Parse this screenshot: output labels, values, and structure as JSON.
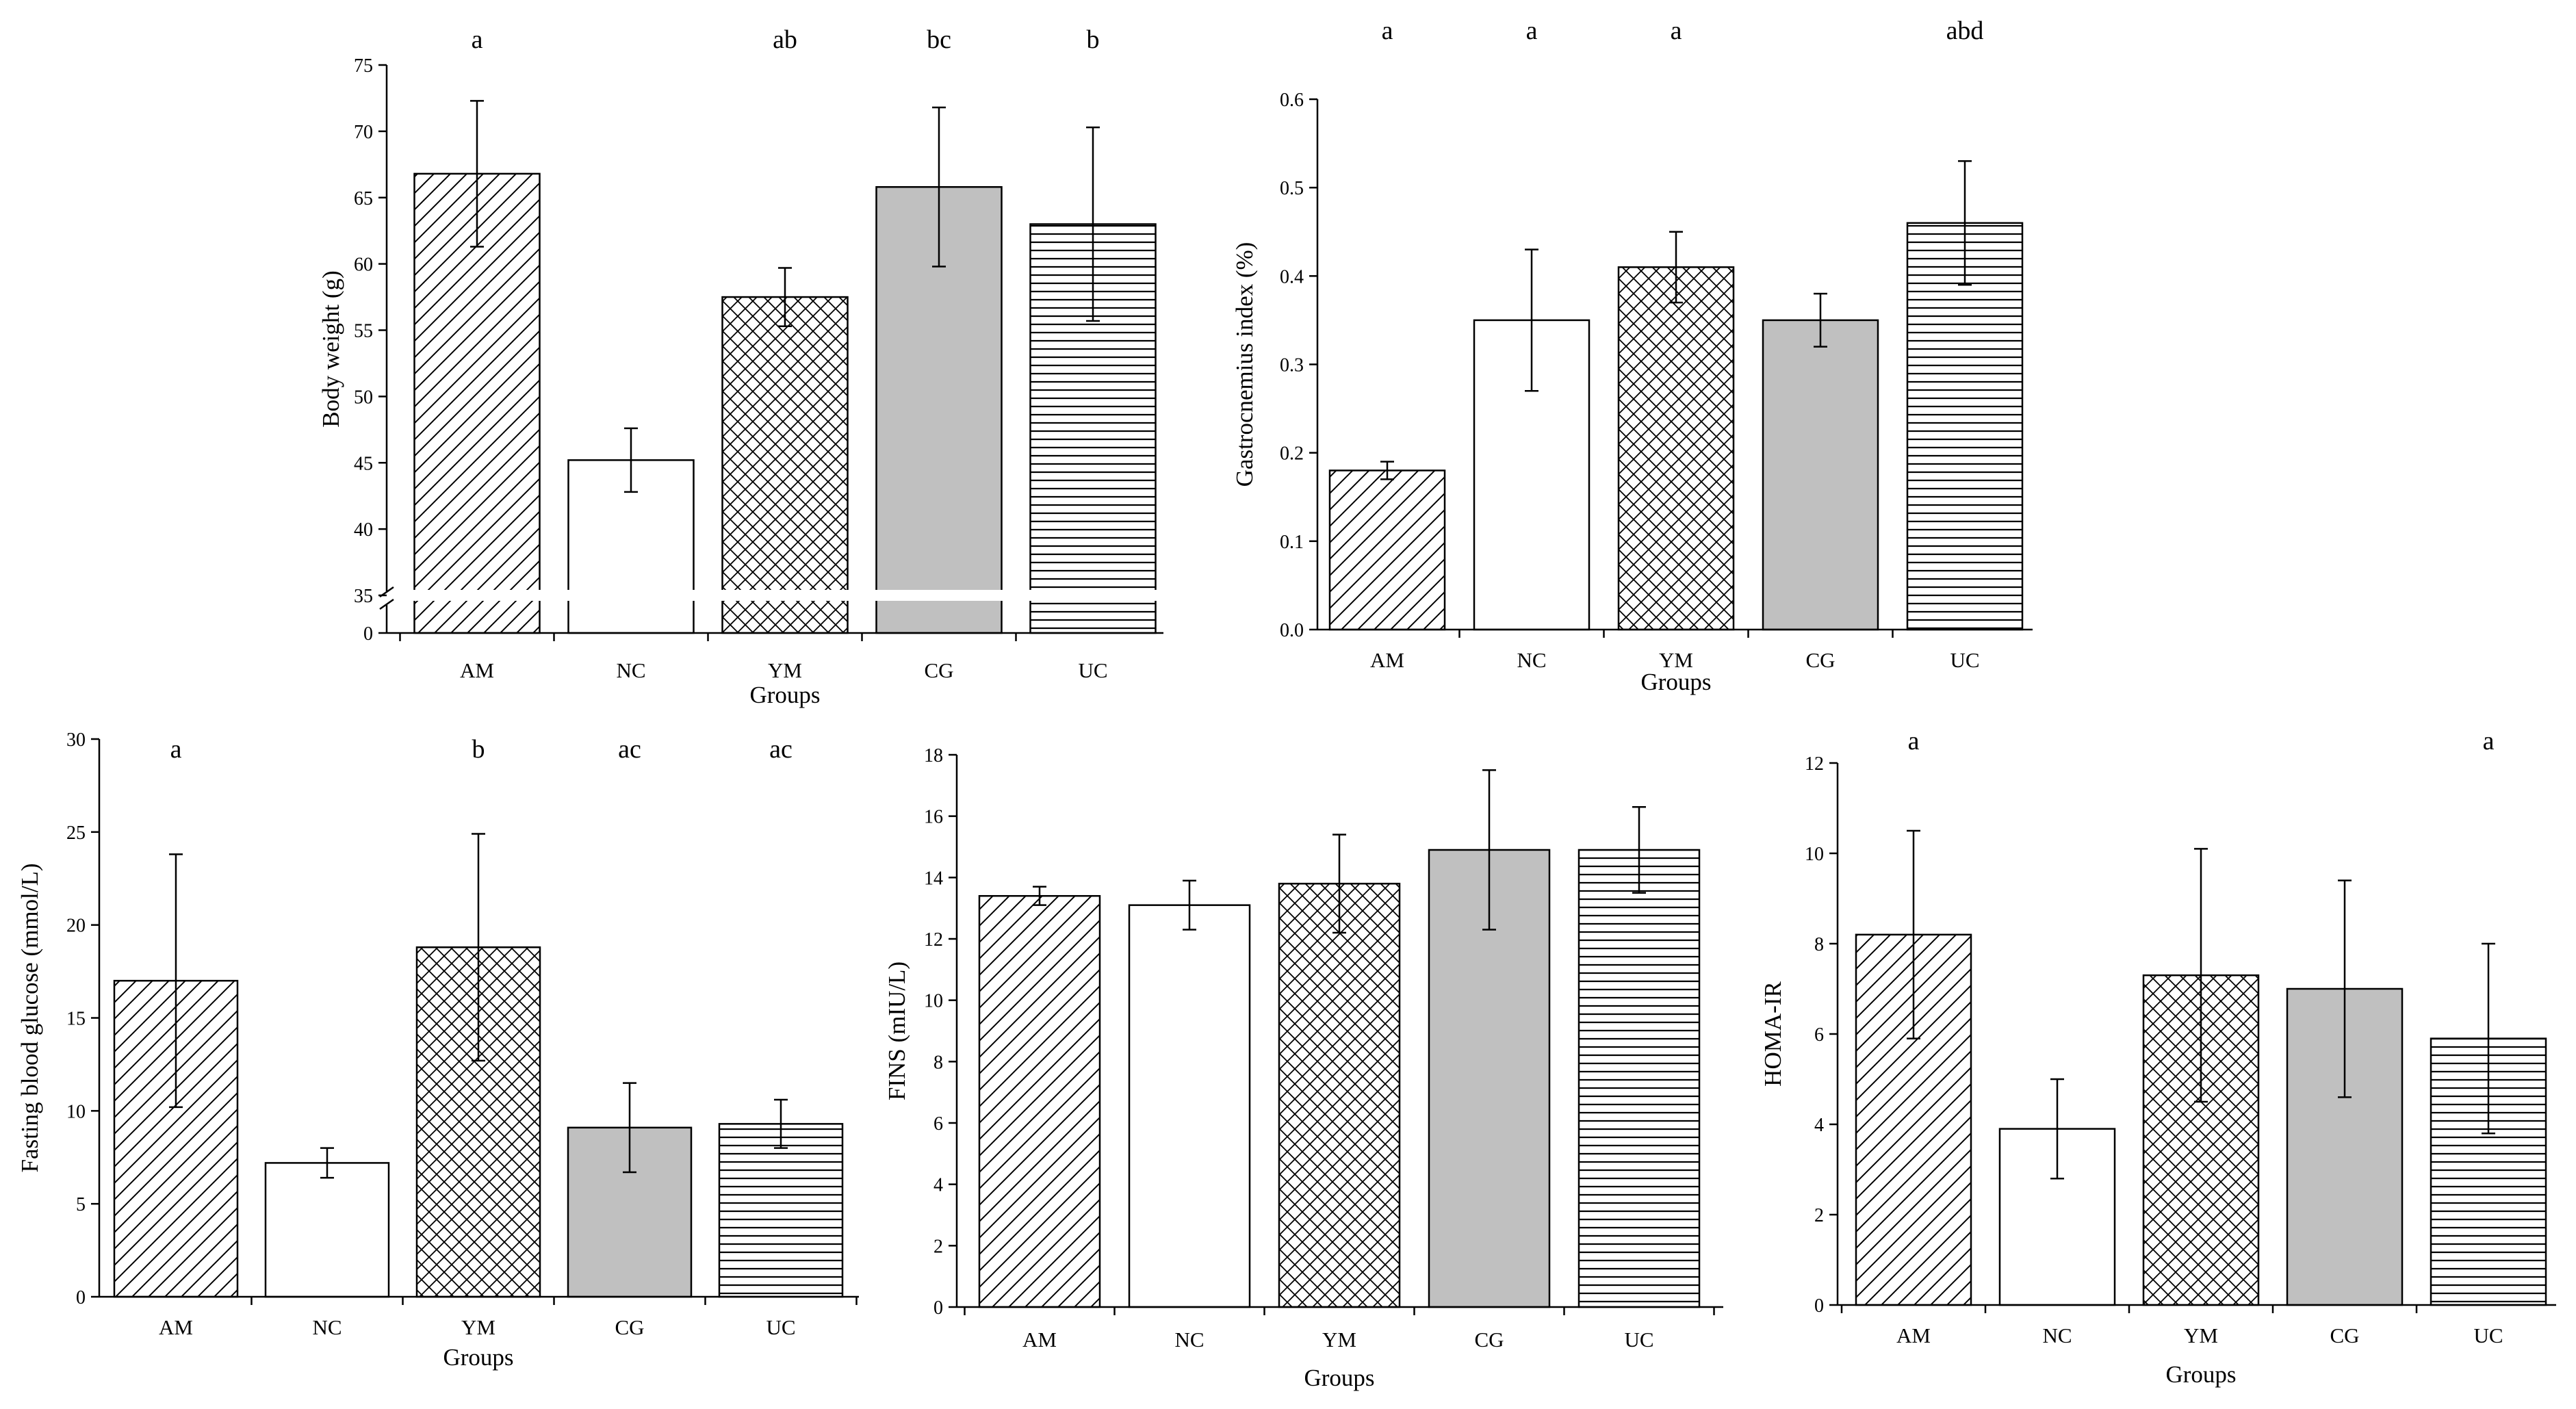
{
  "chart_data": [
    {
      "type": "bar",
      "title": "",
      "categories": [
        "AM",
        "NC",
        "YM",
        "CG",
        "UC"
      ],
      "values": [
        66.8,
        45.2,
        57.5,
        65.8,
        63.0
      ],
      "errors": [
        5.5,
        2.4,
        2.2,
        6.0,
        7.3
      ],
      "significance": [
        "a",
        "",
        "ab",
        "bc",
        "b"
      ],
      "xlabel": "Groups",
      "ylabel": "Body weight (g)",
      "ylim": [
        0,
        75
      ],
      "axis_break": [
        0,
        35
      ],
      "yticks": [
        "0",
        "35",
        "40",
        "45",
        "50",
        "55",
        "60",
        "65",
        "70",
        "75"
      ],
      "grid": false
    },
    {
      "type": "bar",
      "title": "",
      "categories": [
        "AM",
        "NC",
        "YM",
        "CG",
        "UC"
      ],
      "values": [
        0.18,
        0.35,
        0.41,
        0.35,
        0.46
      ],
      "errors": [
        0.01,
        0.08,
        0.04,
        0.03,
        0.07
      ],
      "significance": [
        "a",
        "a",
        "a",
        "",
        "abd"
      ],
      "xlabel": "Groups",
      "ylabel": "Gastrocnemius index (%)",
      "ylim": [
        0,
        0.6
      ],
      "yticks": [
        "0.0",
        "0.1",
        "0.2",
        "0.3",
        "0.4",
        "0.5",
        "0.6"
      ],
      "grid": false
    },
    {
      "type": "bar",
      "title": "",
      "categories": [
        "AM",
        "NC",
        "YM",
        "CG",
        "UC"
      ],
      "values": [
        17.0,
        7.2,
        18.8,
        9.1,
        9.3
      ],
      "errors": [
        6.8,
        0.8,
        6.1,
        2.4,
        1.3
      ],
      "significance": [
        "a",
        "",
        "b",
        "ac",
        "ac"
      ],
      "xlabel": "Groups",
      "ylabel": "Fasting blood glucose (mmol/L)",
      "ylim": [
        0,
        30
      ],
      "yticks": [
        "0",
        "5",
        "10",
        "15",
        "20",
        "25",
        "30"
      ],
      "grid": false
    },
    {
      "type": "bar",
      "title": "",
      "categories": [
        "AM",
        "NC",
        "YM",
        "CG",
        "UC"
      ],
      "values": [
        13.4,
        13.1,
        13.8,
        14.9,
        14.9
      ],
      "errors": [
        0.3,
        0.8,
        1.6,
        2.6,
        1.4
      ],
      "significance": [
        "",
        "",
        "",
        "",
        ""
      ],
      "xlabel": "Groups",
      "ylabel": "FINS (mIU/L)",
      "ylim": [
        0,
        18
      ],
      "yticks": [
        "0",
        "2",
        "4",
        "6",
        "8",
        "10",
        "12",
        "14",
        "16",
        "18"
      ],
      "grid": false
    },
    {
      "type": "bar",
      "title": "",
      "categories": [
        "AM",
        "NC",
        "YM",
        "CG",
        "UC"
      ],
      "values": [
        8.2,
        3.9,
        7.3,
        7.0,
        5.9
      ],
      "errors": [
        2.3,
        1.1,
        2.8,
        2.4,
        2.1
      ],
      "significance": [
        "a",
        "",
        "",
        "",
        "a"
      ],
      "xlabel": "Groups",
      "ylabel": "HOMA-IR",
      "ylim": [
        0,
        12
      ],
      "yticks": [
        "0",
        "2",
        "4",
        "6",
        "8",
        "10",
        "12"
      ],
      "grid": false
    }
  ],
  "bar_styles": [
    {
      "group": "AM",
      "pattern": "diagonal-hatch",
      "fill": "#ffffff"
    },
    {
      "group": "NC",
      "pattern": "none",
      "fill": "#ffffff"
    },
    {
      "group": "YM",
      "pattern": "cross-hatch",
      "fill": "#ffffff"
    },
    {
      "group": "CG",
      "pattern": "none",
      "fill": "#c0c0c0"
    },
    {
      "group": "UC",
      "pattern": "horizontal-lines",
      "fill": "#ffffff"
    }
  ],
  "colors": {
    "axis": "#000000",
    "bar_edge": "#000000",
    "cg_fill": "#c0c0c0",
    "background": "#ffffff"
  }
}
